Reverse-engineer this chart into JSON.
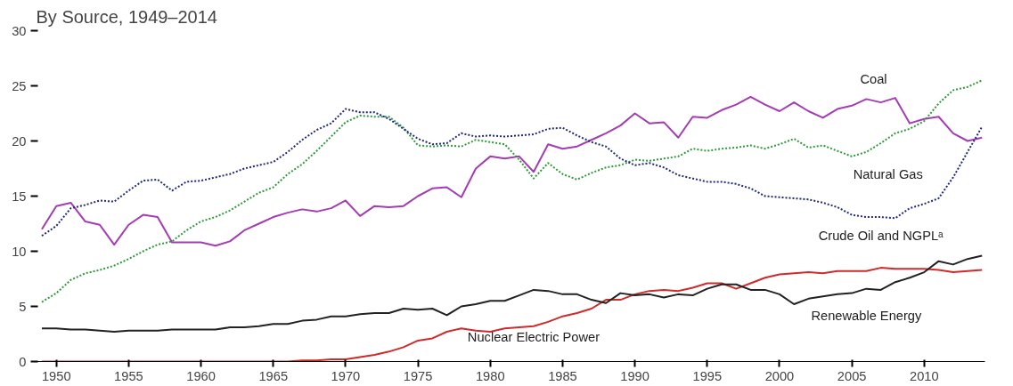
{
  "chart_data": {
    "type": "line",
    "title": "By Source, 1949–2014",
    "x": [
      1949,
      1950,
      1951,
      1952,
      1953,
      1954,
      1955,
      1956,
      1957,
      1958,
      1959,
      1960,
      1961,
      1962,
      1963,
      1964,
      1965,
      1966,
      1967,
      1968,
      1969,
      1970,
      1971,
      1972,
      1973,
      1974,
      1975,
      1976,
      1977,
      1978,
      1979,
      1980,
      1981,
      1982,
      1983,
      1984,
      1985,
      1986,
      1987,
      1988,
      1989,
      1990,
      1991,
      1992,
      1993,
      1994,
      1995,
      1996,
      1997,
      1998,
      1999,
      2000,
      2001,
      2002,
      2003,
      2004,
      2005,
      2006,
      2007,
      2008,
      2009,
      2010,
      2011,
      2012,
      2013,
      2014
    ],
    "series": [
      {
        "name": "Coal",
        "color": "#a43cb4",
        "line_style": "solid",
        "values": [
          12.0,
          14.1,
          14.4,
          12.7,
          12.4,
          10.6,
          12.4,
          13.3,
          13.1,
          10.8,
          10.8,
          10.8,
          10.5,
          10.9,
          11.9,
          12.5,
          13.1,
          13.5,
          13.8,
          13.6,
          13.9,
          14.6,
          13.2,
          14.1,
          14.0,
          14.1,
          15.0,
          15.7,
          15.8,
          14.9,
          17.5,
          18.6,
          18.4,
          18.6,
          17.2,
          19.7,
          19.3,
          19.5,
          20.1,
          20.7,
          21.4,
          22.5,
          21.6,
          21.7,
          20.3,
          22.2,
          22.1,
          22.8,
          23.3,
          24.0,
          23.3,
          22.7,
          23.5,
          22.7,
          22.1,
          22.9,
          23.2,
          23.8,
          23.5,
          23.9,
          21.6,
          22.0,
          22.2,
          20.7,
          20.0,
          20.3
        ]
      },
      {
        "name": "Natural Gas",
        "color": "#2e9a3a",
        "line_style": "dotted",
        "values": [
          5.4,
          6.2,
          7.4,
          8.0,
          8.3,
          8.7,
          9.3,
          10.0,
          10.6,
          10.9,
          11.9,
          12.7,
          13.1,
          13.7,
          14.5,
          15.3,
          15.8,
          17.0,
          17.9,
          19.1,
          20.4,
          21.7,
          22.3,
          22.2,
          22.2,
          21.2,
          19.6,
          19.5,
          19.6,
          19.5,
          20.1,
          19.9,
          19.7,
          18.3,
          16.6,
          18.0,
          17.0,
          16.5,
          17.1,
          17.6,
          17.8,
          18.3,
          18.2,
          18.4,
          18.6,
          19.3,
          19.1,
          19.3,
          19.4,
          19.6,
          19.3,
          19.7,
          20.2,
          19.4,
          19.6,
          19.1,
          18.6,
          19.0,
          19.8,
          20.7,
          21.1,
          21.8,
          23.4,
          24.6,
          24.9,
          25.5
        ]
      },
      {
        "name": "Crude Oil and NGPLᵃ",
        "color": "#1f2a7a",
        "line_style": "dotted",
        "values": [
          11.4,
          12.3,
          13.9,
          14.2,
          14.6,
          14.5,
          15.5,
          16.4,
          16.5,
          15.5,
          16.3,
          16.4,
          16.7,
          17.0,
          17.5,
          17.8,
          18.1,
          19.0,
          20.1,
          21.0,
          21.6,
          22.9,
          22.6,
          22.6,
          22.0,
          21.1,
          20.2,
          19.7,
          19.8,
          20.7,
          20.4,
          20.5,
          20.4,
          20.5,
          20.6,
          21.1,
          21.2,
          20.5,
          19.9,
          19.5,
          18.4,
          17.8,
          18.0,
          17.6,
          16.9,
          16.6,
          16.3,
          16.3,
          16.1,
          15.7,
          15.0,
          14.9,
          14.8,
          14.7,
          14.4,
          14.0,
          13.3,
          13.1,
          13.1,
          13.0,
          13.9,
          14.3,
          14.8,
          16.7,
          19.0,
          21.3
        ]
      },
      {
        "name": "Nuclear Electric Power",
        "color": "#d02a2a",
        "line_style": "solid",
        "values": [
          0,
          0,
          0,
          0,
          0,
          0,
          0,
          0,
          0,
          0,
          0,
          0,
          0,
          0,
          0,
          0,
          0,
          0,
          0.1,
          0.1,
          0.2,
          0.2,
          0.4,
          0.6,
          0.9,
          1.3,
          1.9,
          2.1,
          2.7,
          3.0,
          2.8,
          2.7,
          3.0,
          3.1,
          3.2,
          3.6,
          4.1,
          4.4,
          4.8,
          5.6,
          5.6,
          6.1,
          6.4,
          6.5,
          6.4,
          6.7,
          7.1,
          7.1,
          6.6,
          7.1,
          7.6,
          7.9,
          8.0,
          8.1,
          8.0,
          8.2,
          8.2,
          8.2,
          8.5,
          8.4,
          8.4,
          8.4,
          8.3,
          8.1,
          8.2,
          8.3
        ]
      },
      {
        "name": "Renewable Energy",
        "color": "#222222",
        "line_style": "solid",
        "values": [
          3.0,
          3.0,
          2.9,
          2.9,
          2.8,
          2.7,
          2.8,
          2.8,
          2.8,
          2.9,
          2.9,
          2.9,
          2.9,
          3.1,
          3.1,
          3.2,
          3.4,
          3.4,
          3.7,
          3.8,
          4.1,
          4.1,
          4.3,
          4.4,
          4.4,
          4.8,
          4.7,
          4.8,
          4.2,
          5.0,
          5.2,
          5.5,
          5.5,
          6.0,
          6.5,
          6.4,
          6.1,
          6.1,
          5.6,
          5.3,
          6.2,
          6.0,
          6.1,
          5.8,
          6.1,
          6.0,
          6.6,
          7.0,
          7.0,
          6.5,
          6.5,
          6.1,
          5.2,
          5.7,
          5.9,
          6.1,
          6.2,
          6.6,
          6.5,
          7.2,
          7.6,
          8.1,
          9.1,
          8.8,
          9.3,
          9.6
        ]
      }
    ],
    "xlim": [
      1948.6,
      2014.2
    ],
    "xticks": [
      1950,
      1955,
      1960,
      1965,
      1970,
      1975,
      1980,
      1985,
      1990,
      1995,
      2000,
      2005,
      2010
    ],
    "ylim": [
      0,
      30
    ],
    "yticks": [
      0,
      5,
      10,
      15,
      20,
      25,
      30
    ]
  }
}
